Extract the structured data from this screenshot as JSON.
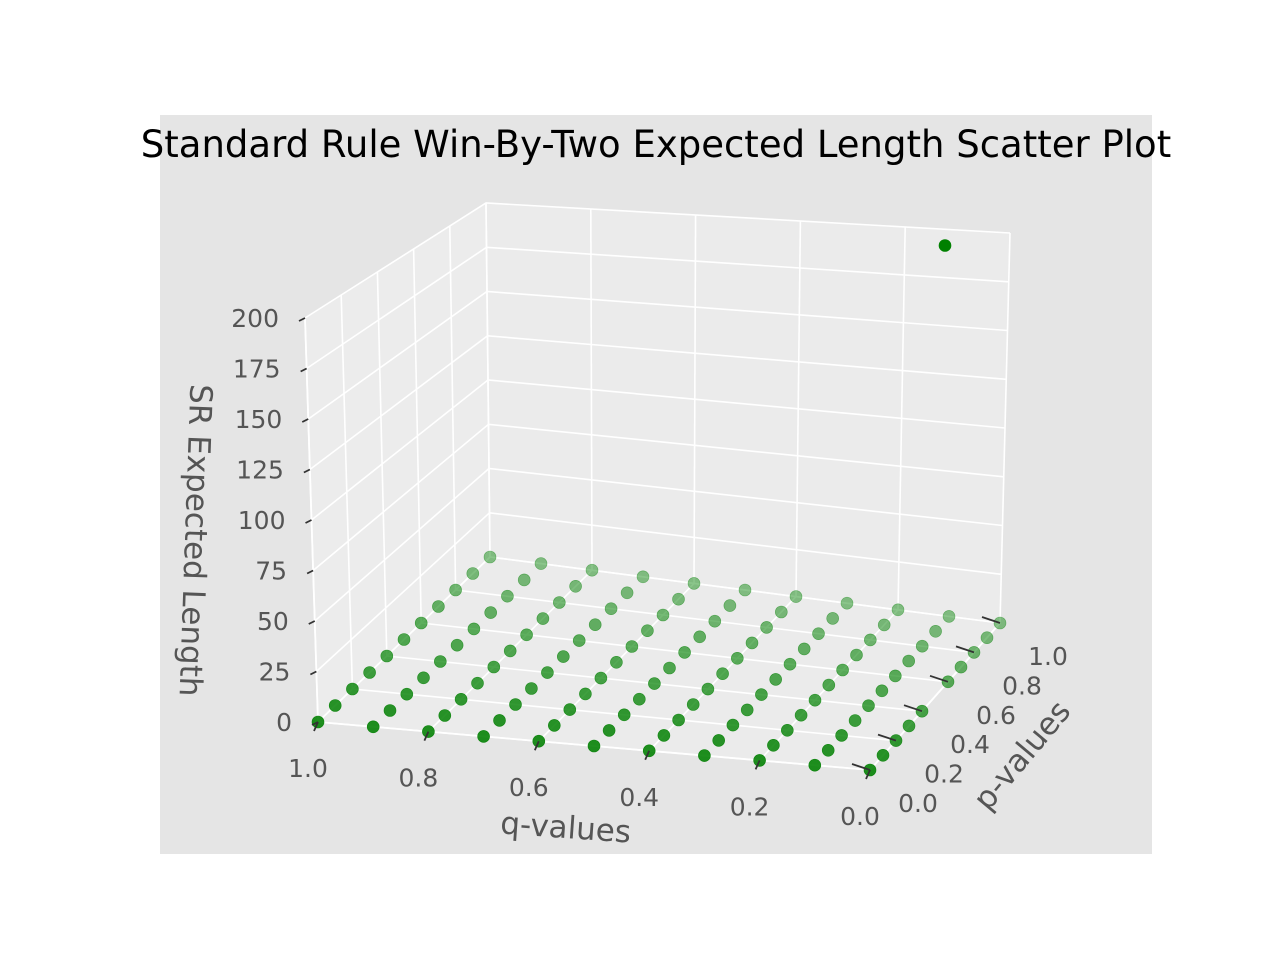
{
  "chart_data": {
    "type": "scatter",
    "title": "Standard Rule Win-By-Two Expected Length Scatter Plot",
    "xlabel": "p-values",
    "ylabel": "q-values",
    "zlabel": "SR Expected Length",
    "x_ticks": [
      "0.0",
      "0.2",
      "0.4",
      "0.6",
      "0.8",
      "1.0"
    ],
    "y_ticks": [
      "0.0",
      "0.2",
      "0.4",
      "0.6",
      "0.8",
      "1.0"
    ],
    "z_ticks": [
      "0",
      "25",
      "50",
      "75",
      "100",
      "125",
      "150",
      "175",
      "200"
    ],
    "xlim": [
      0,
      1
    ],
    "ylim": [
      0,
      1
    ],
    "zlim": [
      0,
      200
    ],
    "grid": true,
    "marker_color": "#008000",
    "p_grid": [
      0.0,
      0.1,
      0.2,
      0.3,
      0.4,
      0.5,
      0.6,
      0.7,
      0.8,
      0.9,
      1.0
    ],
    "q_grid": [
      0.0,
      0.1,
      0.2,
      0.3,
      0.4,
      0.5,
      0.6,
      0.7,
      0.8,
      0.9,
      1.0
    ],
    "outlier": {
      "p": 0.5,
      "q": 0.0,
      "z": 200
    }
  }
}
